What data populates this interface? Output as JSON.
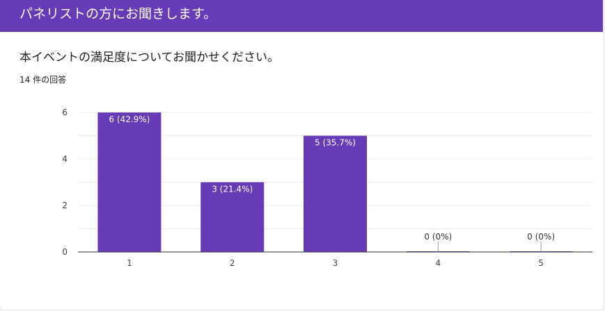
{
  "section_title": "パネリストの方にお聞きします。",
  "question": "本イベントの満足度についてお聞かせください。",
  "response_count": "14 件の回答",
  "colors": {
    "accent": "#673ab7",
    "bar": "#673ab7"
  },
  "chart_data": {
    "type": "bar",
    "categories": [
      "1",
      "2",
      "3",
      "4",
      "5"
    ],
    "values": [
      6,
      3,
      5,
      0,
      0
    ],
    "labels": [
      "6 (42.9%)",
      "3 (21.4%)",
      "5 (35.7%)",
      "0 (0%)",
      "0 (0%)"
    ],
    "ylim": [
      0,
      6
    ],
    "yticks": [
      "0",
      "2",
      "4",
      "6"
    ],
    "grid": true
  }
}
